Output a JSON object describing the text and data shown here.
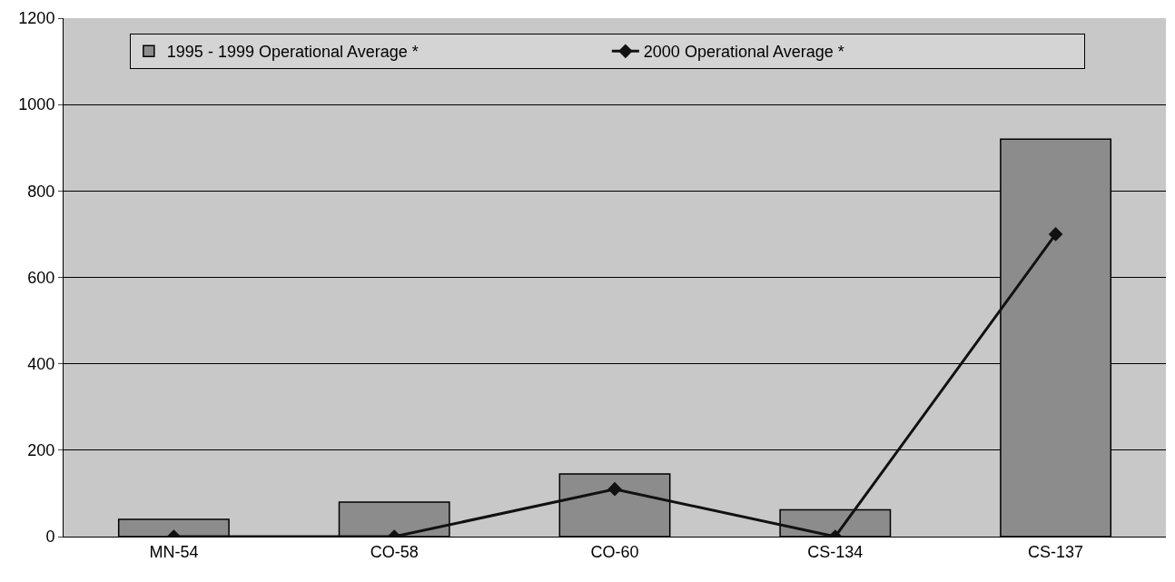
{
  "chart_data": {
    "type": "bar",
    "categories": [
      "MN-54",
      "CO-58",
      "CO-60",
      "CS-134",
      "CS-137"
    ],
    "series": [
      {
        "name": "1995 - 1999 Operational Average *",
        "color": "#8c8c8c",
        "values": [
          40,
          80,
          145,
          62,
          920
        ]
      },
      {
        "name": "2000 Operational Average *",
        "type": "line",
        "color": "#111111",
        "values": [
          0,
          0,
          110,
          0,
          700
        ],
        "marker": "diamond"
      }
    ],
    "ylim": [
      0,
      1200
    ],
    "yticks": [
      0,
      200,
      400,
      600,
      800,
      1000,
      1200
    ],
    "grid": "y",
    "legend": "top"
  }
}
